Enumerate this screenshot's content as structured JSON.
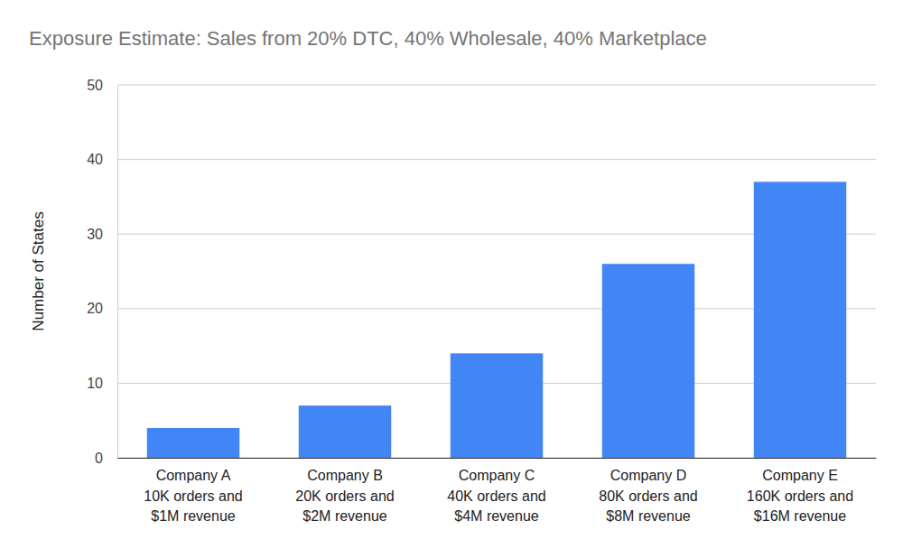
{
  "chart_data": {
    "type": "bar",
    "title": "Exposure Estimate: Sales from 20% DTC, 40% Wholesale, 40% Marketplace",
    "y_label": "Number of States",
    "categories": [
      "Company A\n10K orders and\n$1M revenue",
      "Company B\n20K orders and\n$2M revenue",
      "Company C\n40K orders and\n$4M revenue",
      "Company D\n80K orders and\n$8M revenue",
      "Company E\n160K orders and\n$16M revenue"
    ],
    "values": [
      4,
      7,
      14,
      26,
      37
    ],
    "color": "#4285f4",
    "ylim": [
      0,
      50
    ],
    "yticks": [
      0,
      10,
      20,
      30,
      40,
      50
    ],
    "grid": true
  }
}
